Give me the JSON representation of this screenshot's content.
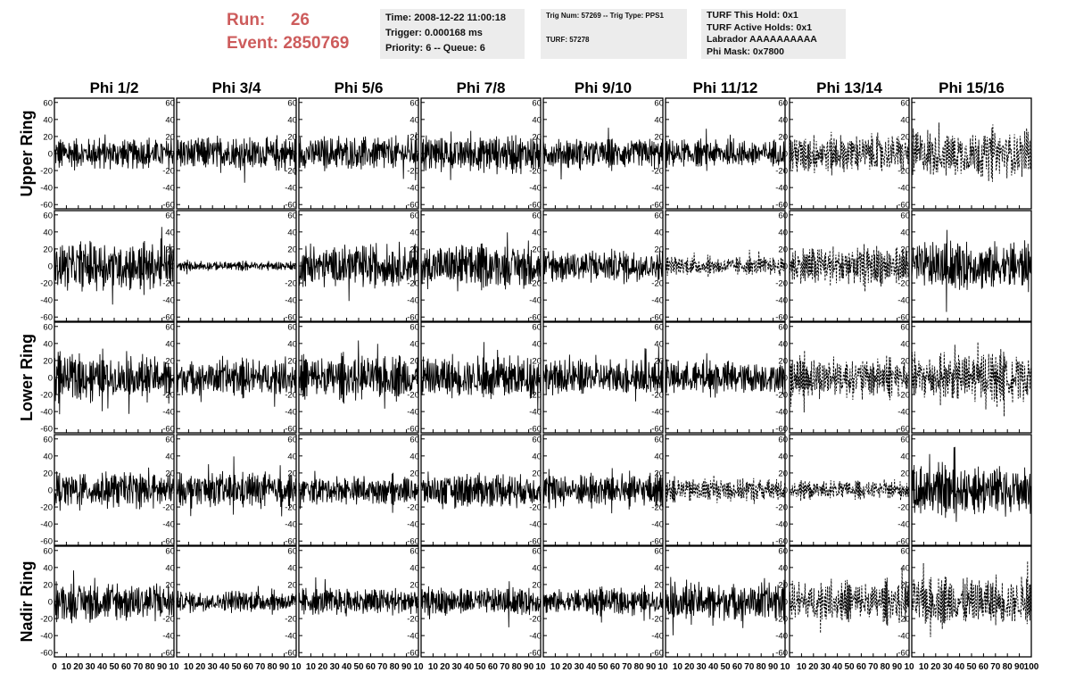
{
  "header": {
    "run_label": "Run:",
    "run_value": "26",
    "event_label": "Event:",
    "event_value": "2850769",
    "time_line": "Time: 2008-12-22 11:00:18",
    "trigger_line": "Trigger: 0.000168 ms",
    "priority_line": "Priority: 6 -- Queue: 6",
    "trig_num_line": "Trig Num: 57269 -- Trig Type: PPS1",
    "turf_line": "TURF: 57278",
    "turf_hold_line": "TURF This Hold: 0x1",
    "turf_active_line": "TURF Active Holds: 0x1",
    "labrador_line": "Labrador AAAAAAAAAA",
    "phi_mask_line": "Phi Mask: 0x7800"
  },
  "chart_data": {
    "type": "line",
    "columns": [
      "Phi 1/2",
      "Phi 3/4",
      "Phi 5/6",
      "Phi 7/8",
      "Phi 9/10",
      "Phi 11/12",
      "Phi 13/14",
      "Phi 15/16"
    ],
    "rows": [
      "Upper Ring",
      "Lower Ring",
      "Nadir Ring"
    ],
    "panel_rows": 5,
    "panel_row_labels": [
      "Upper Ring",
      "",
      "Lower Ring",
      "",
      "Nadir Ring"
    ],
    "y_ticks": [
      -60,
      -40,
      -20,
      0,
      20,
      40,
      60
    ],
    "ylim": [
      -65,
      65
    ],
    "x_tick_labels_first": [
      "0",
      "10",
      "20",
      "30",
      "40",
      "50",
      "60",
      "70",
      "80",
      "90",
      "10"
    ],
    "x_tick_labels_middle": [
      "10",
      "20",
      "30",
      "40",
      "50",
      "60",
      "70",
      "80",
      "90",
      "10"
    ],
    "x_tick_labels_last": [
      "10",
      "20",
      "30",
      "40",
      "50",
      "60",
      "70",
      "80",
      "90",
      "100"
    ],
    "xlim": [
      0,
      100
    ],
    "samples": 256,
    "dashed_panels": [
      [
        0,
        6
      ],
      [
        0,
        7
      ],
      [
        1,
        5
      ],
      [
        1,
        6
      ],
      [
        2,
        6
      ],
      [
        2,
        7
      ],
      [
        3,
        5
      ],
      [
        3,
        6
      ],
      [
        4,
        6
      ],
      [
        4,
        7
      ]
    ],
    "amplitudes": [
      [
        10,
        11,
        11,
        12,
        10,
        9,
        13,
        16
      ],
      [
        16,
        3,
        14,
        14,
        11,
        6,
        13,
        16
      ],
      [
        14,
        12,
        14,
        14,
        12,
        11,
        13,
        16
      ],
      [
        12,
        11,
        9,
        11,
        11,
        8,
        6,
        16
      ],
      [
        13,
        7,
        9,
        9,
        8,
        13,
        13,
        16
      ]
    ]
  }
}
